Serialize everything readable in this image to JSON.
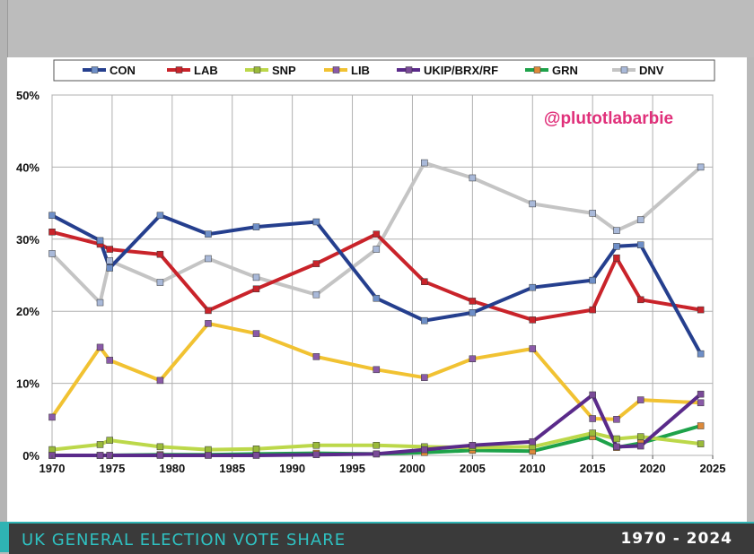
{
  "footer": {
    "title": "UK GENERAL ELECTION VOTE SHARE",
    "years": "1970 - 2024"
  },
  "watermark": "@plutotlabarbie",
  "chart_data": {
    "type": "line",
    "xlim": [
      1970,
      2025
    ],
    "ylim": [
      0,
      50
    ],
    "x_ticks": [
      "1970",
      "1975",
      "1980",
      "1985",
      "1990",
      "1995",
      "2000",
      "2005",
      "2010",
      "2015",
      "2020",
      "2025"
    ],
    "y_ticks": [
      "0%",
      "10%",
      "20%",
      "30%",
      "40%",
      "50%"
    ],
    "grid": true,
    "legend_position": "top",
    "x": [
      1970,
      1974,
      1974.8,
      1979,
      1983,
      1987,
      1992,
      1997,
      2001,
      2005,
      2010,
      2015,
      2017,
      2019,
      2024
    ],
    "series": [
      {
        "name": "CON",
        "color": "#253f8e",
        "values": [
          33.3,
          29.8,
          26.0,
          33.3,
          30.7,
          31.7,
          32.4,
          21.8,
          18.7,
          19.8,
          23.3,
          24.3,
          29.0,
          29.2,
          14.1
        ]
      },
      {
        "name": "LAB",
        "color": "#c9232a",
        "values": [
          31.0,
          29.3,
          28.6,
          27.9,
          20.1,
          23.1,
          26.6,
          30.7,
          24.1,
          21.4,
          18.8,
          20.2,
          27.4,
          21.6,
          20.2
        ]
      },
      {
        "name": "SNP",
        "color": "#bcd84a",
        "values": [
          0.8,
          1.5,
          2.1,
          1.2,
          0.8,
          0.9,
          1.4,
          1.4,
          1.2,
          1.1,
          1.2,
          3.1,
          2.3,
          2.6,
          1.6
        ]
      },
      {
        "name": "LIB",
        "color": "#f1c232",
        "values": [
          5.3,
          15.0,
          13.2,
          10.4,
          18.3,
          16.9,
          13.7,
          11.9,
          10.8,
          13.4,
          14.8,
          5.1,
          5.0,
          7.7,
          7.3
        ]
      },
      {
        "name": "UKIP/BRX/RF",
        "color": "#5a2a8a",
        "values": [
          0.0,
          0.0,
          0.0,
          0.0,
          0.0,
          0.0,
          0.1,
          0.2,
          0.8,
          1.4,
          1.9,
          8.4,
          1.2,
          1.3,
          8.5
        ]
      },
      {
        "name": "GRN",
        "color": "#1ea24a",
        "values": [
          0.0,
          0.0,
          0.0,
          0.1,
          0.1,
          0.2,
          0.3,
          0.2,
          0.4,
          0.7,
          0.6,
          2.6,
          1.1,
          1.7,
          4.1
        ]
      },
      {
        "name": "DNV",
        "color": "#c4c4c4",
        "values": [
          28.0,
          21.2,
          27.0,
          24.0,
          27.3,
          24.7,
          22.3,
          28.6,
          40.6,
          38.5,
          34.9,
          33.6,
          31.2,
          32.7,
          40.0
        ]
      }
    ],
    "marker_colors": [
      "#6e8fc8",
      "#c9232a",
      "#9aba3a",
      "#8a5aa8",
      "#7a4a98",
      "#dd8a3a",
      "#a9b9d9"
    ]
  }
}
